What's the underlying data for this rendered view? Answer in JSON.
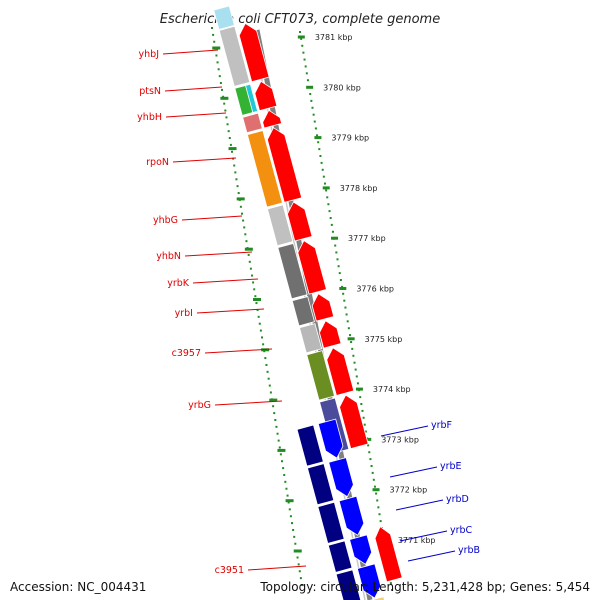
{
  "title": "Escherichia coli CFT073, complete genome",
  "accession": "Accession: NC_004431",
  "topology": "Topology: circular; Length: 5,231,428 bp; Genes: 5,454",
  "kbp_ticks": [
    "3781 kbp",
    "3780 kbp",
    "3779 kbp",
    "3778 kbp",
    "3777 kbp",
    "3776 kbp",
    "3775 kbp",
    "3774 kbp",
    "3773 kbp",
    "3772 kbp",
    "3771 kbp"
  ],
  "genes_left": [
    {
      "name": "yhbJ",
      "color": "#c0c0c0"
    },
    {
      "name": "ptsN",
      "color": "#33b233"
    },
    {
      "name": "yhbH",
      "color": "#e07070"
    },
    {
      "name": "rpoN",
      "color": "#f39010"
    },
    {
      "name": "yhbG",
      "color": "#c0c0c0"
    },
    {
      "name": "yhbN",
      "color": "#707070"
    },
    {
      "name": "yrbK",
      "color": "#707070"
    },
    {
      "name": "yrbI",
      "color": "#b8b8b8"
    },
    {
      "name": "c3957",
      "color": "#6b8e23"
    },
    {
      "name": "yrbG",
      "color": "#4b4b9b"
    },
    {
      "name": "c3951",
      "color": "#e00000"
    }
  ],
  "genes_right": [
    {
      "name": "yrbF",
      "color": "#0000ff"
    },
    {
      "name": "yrbE",
      "color": "#0000ff"
    },
    {
      "name": "yrbD",
      "color": "#0000ff"
    },
    {
      "name": "yrbC",
      "color": "#0000ff"
    },
    {
      "name": "yrbB",
      "color": "#0000ff"
    }
  ],
  "colors": {
    "forward_strand": "#ff0000",
    "reverse_strand": "#0000ff",
    "reverse_cog": "#000080",
    "tick_green": "#228b22",
    "backbone_gray": "#808080",
    "label_red": "#e00000",
    "label_blue": "#0000c8"
  }
}
